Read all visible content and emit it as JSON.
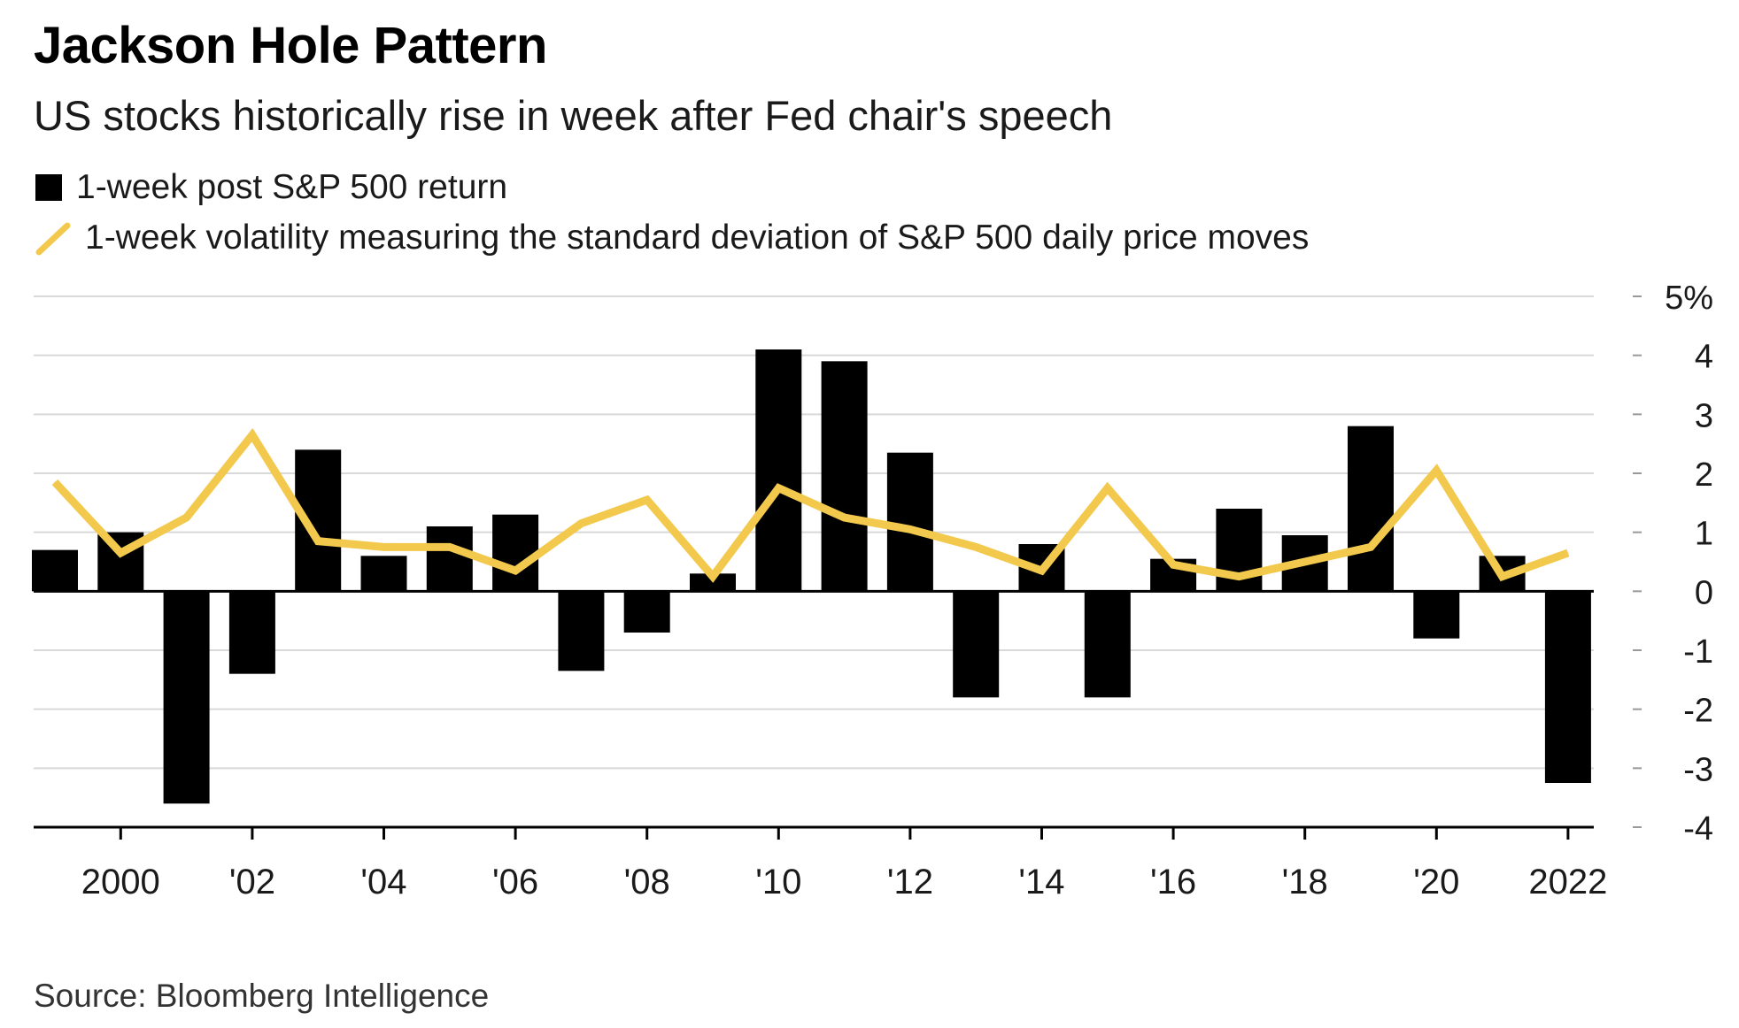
{
  "title": "Jackson Hole Pattern",
  "subtitle": "US stocks historically rise in week after Fed chair's speech",
  "source": "Source: Bloomberg Intelligence",
  "colors": {
    "bar": "#000000",
    "line": "#f2c94c",
    "grid": "#d9d9d9",
    "axis": "#000000",
    "text": "#1a1a1a"
  },
  "legend": [
    {
      "label": "1-week post S&P 500 return",
      "icon": "black-square-icon"
    },
    {
      "label": "1-week volatility measuring the standard deviation of S&P 500 daily price moves",
      "icon": "yellow-line-icon"
    }
  ],
  "chart_data": {
    "type": "bar",
    "x": [
      1999,
      2000,
      2001,
      2002,
      2003,
      2004,
      2005,
      2006,
      2007,
      2008,
      2009,
      2010,
      2011,
      2012,
      2013,
      2014,
      2015,
      2016,
      2017,
      2018,
      2019,
      2020,
      2021,
      2022
    ],
    "series": [
      {
        "name": "1-week post S&P 500 return",
        "type": "bar",
        "values": [
          0.7,
          1.0,
          -3.6,
          -1.4,
          2.4,
          0.6,
          1.1,
          1.3,
          -1.35,
          -0.7,
          0.3,
          4.1,
          3.9,
          2.35,
          -1.8,
          0.8,
          -1.8,
          0.55,
          1.4,
          0.95,
          2.8,
          -0.8,
          0.6,
          -3.25
        ]
      },
      {
        "name": "1-week volatility measuring the standard deviation of S&P 500 daily price moves",
        "type": "line",
        "values": [
          1.85,
          0.65,
          1.25,
          2.65,
          0.85,
          0.75,
          0.75,
          0.35,
          1.15,
          1.55,
          0.25,
          1.75,
          1.25,
          1.05,
          0.75,
          0.35,
          1.75,
          0.45,
          0.25,
          0.5,
          0.75,
          2.05,
          0.25,
          0.65
        ]
      }
    ],
    "xticks": [
      2000,
      2002,
      2004,
      2006,
      2008,
      2010,
      2012,
      2014,
      2016,
      2018,
      2020,
      2022
    ],
    "xtick_labels": [
      "2000",
      "'02",
      "'04",
      "'06",
      "'08",
      "'10",
      "'12",
      "'14",
      "'16",
      "'18",
      "'20",
      "2022"
    ],
    "yticks": [
      5,
      4,
      3,
      2,
      1,
      0,
      -1,
      -2,
      -3,
      -4
    ],
    "ytick_labels": [
      "5%",
      "4",
      "3",
      "2",
      "1",
      "0",
      "-1",
      "-2",
      "-3",
      "-4"
    ],
    "ylim": [
      -4,
      5
    ],
    "grid": true,
    "legend_position": "top-left"
  }
}
